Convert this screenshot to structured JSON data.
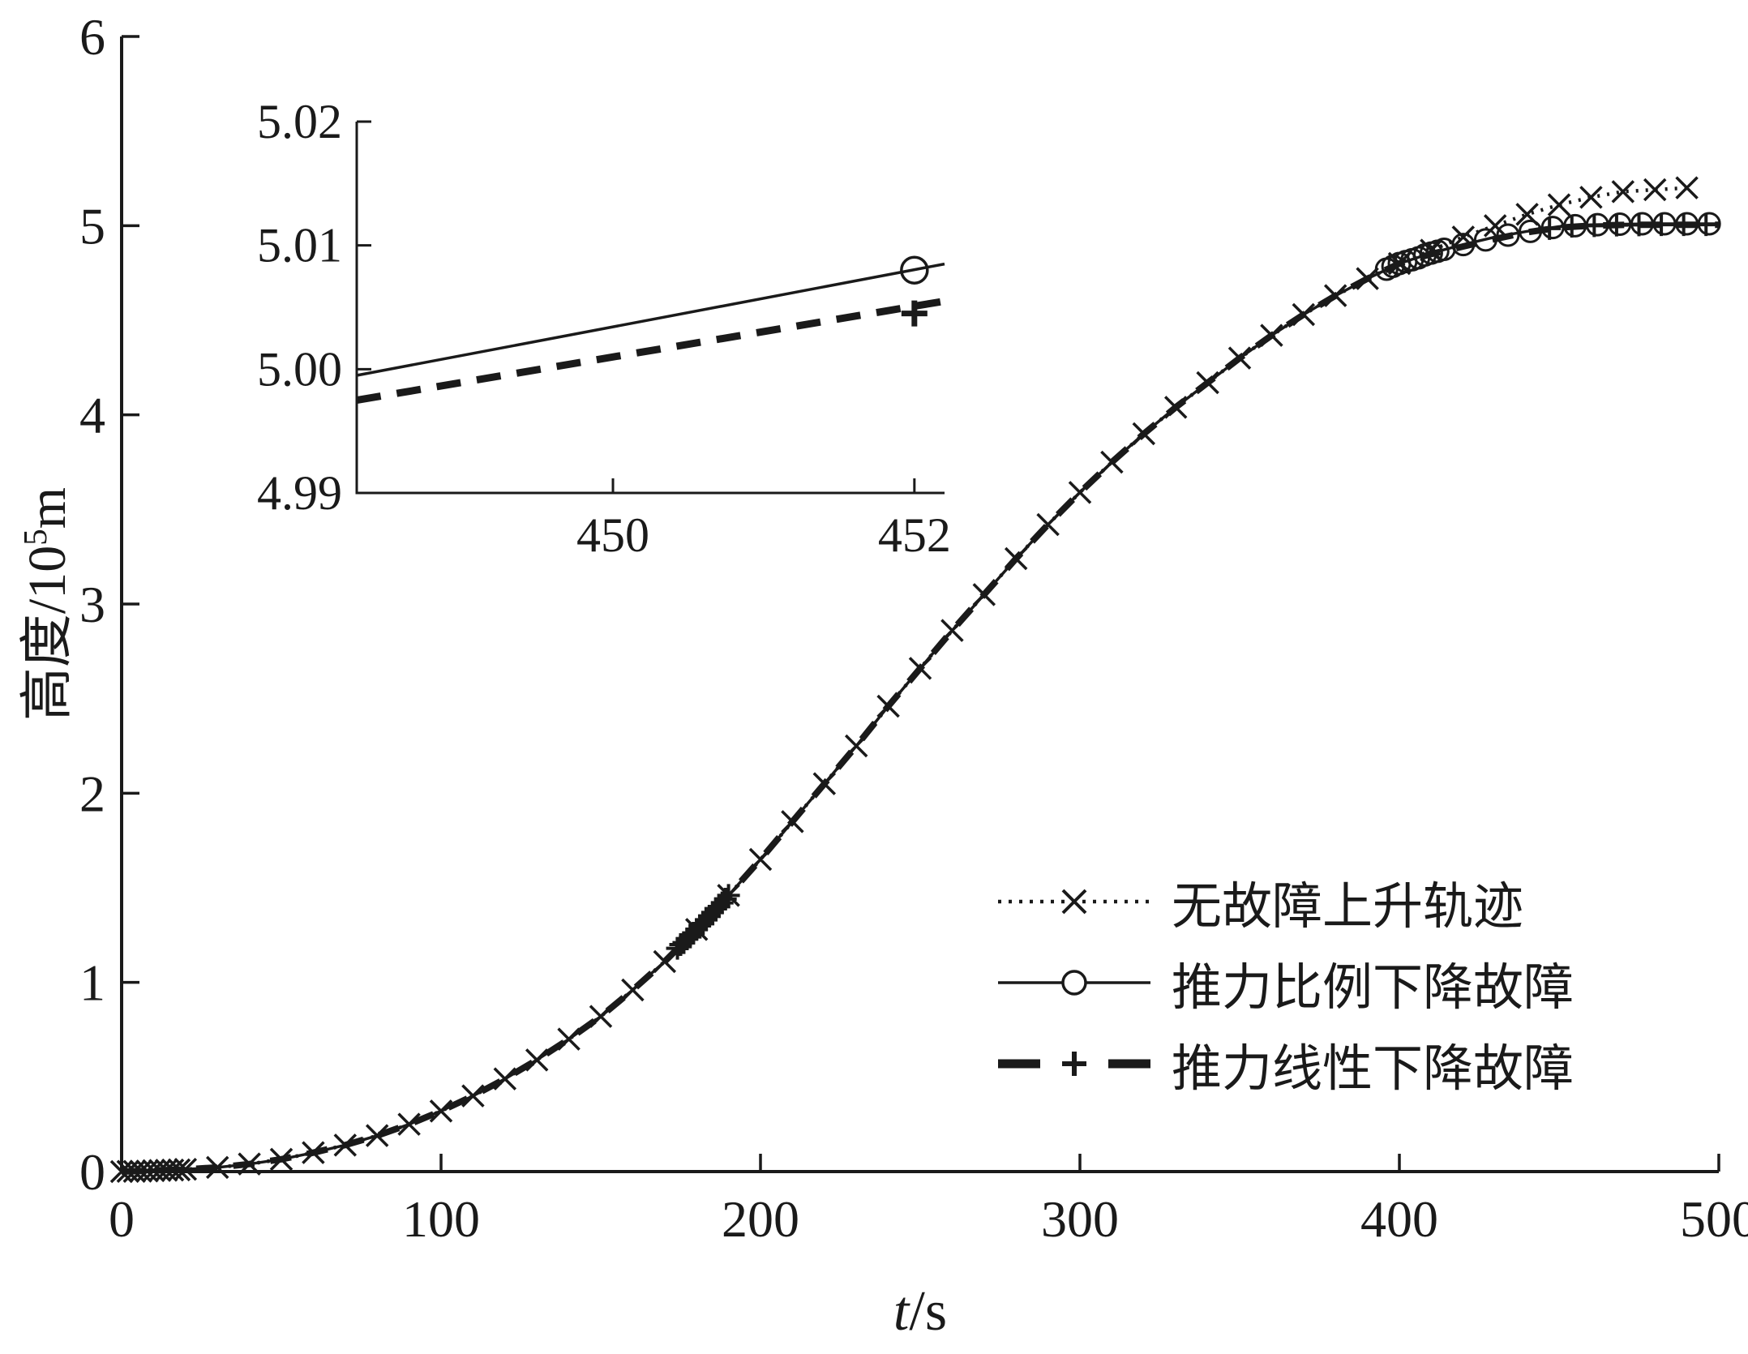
{
  "figure": {
    "bg": "#ffffff",
    "line_color": "#1a1a1a"
  },
  "main_axes": {
    "xlabel_var": "t",
    "xlabel_unit": "/s",
    "ylabel_prefix": "高度/10",
    "ylabel_sup": "5",
    "ylabel_suffix": "m"
  },
  "legend": {
    "items": [
      {
        "label": "无故障上升轨迹",
        "style": "dotted",
        "marker": "x"
      },
      {
        "label": "推力比例下降故障",
        "style": "solid",
        "marker": "circle"
      },
      {
        "label": "推力线性下降故障",
        "style": "dashed",
        "marker": "plus"
      }
    ]
  },
  "chart_data": {
    "type": "line",
    "xlabel": "t/s",
    "ylabel": "高度/10^5 m",
    "xlim": [
      0,
      500
    ],
    "ylim": [
      0,
      6
    ],
    "xticks": {
      "values": [
        0,
        100,
        200,
        300,
        400,
        500
      ],
      "labels": [
        "0",
        "100",
        "200",
        "300",
        "400",
        "500"
      ]
    },
    "yticks": {
      "values": [
        0,
        1,
        2,
        3,
        4,
        5,
        6
      ],
      "labels": [
        "0",
        "1",
        "2",
        "3",
        "4",
        "5",
        "6"
      ]
    },
    "grid": false,
    "legend_position": "lower-right-inside",
    "common_curve": [
      [
        0,
        0
      ],
      [
        10,
        0.005
      ],
      [
        20,
        0.012
      ],
      [
        30,
        0.022
      ],
      [
        40,
        0.04
      ],
      [
        50,
        0.065
      ],
      [
        60,
        0.1
      ],
      [
        70,
        0.14
      ],
      [
        80,
        0.19
      ],
      [
        90,
        0.25
      ],
      [
        100,
        0.32
      ],
      [
        110,
        0.4
      ],
      [
        120,
        0.49
      ],
      [
        130,
        0.59
      ],
      [
        140,
        0.7
      ],
      [
        150,
        0.82
      ],
      [
        160,
        0.96
      ],
      [
        170,
        1.11
      ],
      [
        180,
        1.28
      ],
      [
        190,
        1.46
      ],
      [
        200,
        1.65
      ],
      [
        210,
        1.85
      ],
      [
        220,
        2.05
      ],
      [
        230,
        2.25
      ],
      [
        240,
        2.46
      ],
      [
        250,
        2.66
      ],
      [
        260,
        2.86
      ],
      [
        270,
        3.05
      ],
      [
        280,
        3.24
      ],
      [
        290,
        3.42
      ],
      [
        300,
        3.59
      ],
      [
        310,
        3.75
      ],
      [
        320,
        3.9
      ],
      [
        330,
        4.04
      ],
      [
        340,
        4.17
      ],
      [
        350,
        4.3
      ],
      [
        360,
        4.42
      ],
      [
        370,
        4.53
      ],
      [
        380,
        4.63
      ],
      [
        390,
        4.72
      ],
      [
        400,
        4.8
      ]
    ],
    "series": [
      {
        "id": "fault-free",
        "name": "无故障上升轨迹",
        "style": "dotted",
        "marker": "x",
        "line_tail": [
          [
            410,
            4.87
          ],
          [
            420,
            4.94
          ],
          [
            430,
            5.0
          ],
          [
            440,
            5.06
          ],
          [
            450,
            5.11
          ],
          [
            460,
            5.15
          ],
          [
            470,
            5.18
          ],
          [
            480,
            5.19
          ],
          [
            490,
            5.2
          ]
        ],
        "markers": [
          [
            0,
            0
          ],
          [
            2,
            0.001
          ],
          [
            4,
            0.001
          ],
          [
            6,
            0.002
          ],
          [
            8,
            0.003
          ],
          [
            10,
            0.005
          ],
          [
            12,
            0.006
          ],
          [
            14,
            0.007
          ],
          [
            16,
            0.008
          ],
          [
            18,
            0.009
          ],
          [
            20,
            0.012
          ],
          [
            30,
            0.022
          ],
          [
            40,
            0.04
          ],
          [
            50,
            0.065
          ],
          [
            60,
            0.1
          ],
          [
            70,
            0.14
          ],
          [
            80,
            0.19
          ],
          [
            90,
            0.25
          ],
          [
            100,
            0.32
          ],
          [
            110,
            0.4
          ],
          [
            120,
            0.49
          ],
          [
            130,
            0.59
          ],
          [
            140,
            0.7
          ],
          [
            150,
            0.82
          ],
          [
            160,
            0.96
          ],
          [
            170,
            1.11
          ],
          [
            180,
            1.28
          ],
          [
            190,
            1.46
          ],
          [
            200,
            1.65
          ],
          [
            210,
            1.85
          ],
          [
            220,
            2.05
          ],
          [
            230,
            2.25
          ],
          [
            240,
            2.46
          ],
          [
            250,
            2.66
          ],
          [
            260,
            2.86
          ],
          [
            270,
            3.05
          ],
          [
            280,
            3.24
          ],
          [
            290,
            3.42
          ],
          [
            300,
            3.59
          ],
          [
            310,
            3.75
          ],
          [
            320,
            3.9
          ],
          [
            330,
            4.04
          ],
          [
            340,
            4.17
          ],
          [
            350,
            4.3
          ],
          [
            360,
            4.42
          ],
          [
            370,
            4.53
          ],
          [
            380,
            4.63
          ],
          [
            390,
            4.72
          ],
          [
            400,
            4.8
          ],
          [
            410,
            4.87
          ],
          [
            420,
            4.94
          ],
          [
            430,
            5.0
          ],
          [
            440,
            5.06
          ],
          [
            450,
            5.11
          ],
          [
            460,
            5.15
          ],
          [
            470,
            5.18
          ],
          [
            480,
            5.19
          ],
          [
            490,
            5.2
          ]
        ]
      },
      {
        "id": "thrust-proportional-decline",
        "name": "推力比例下降故障",
        "style": "solid",
        "marker": "circle",
        "line_tail": [
          [
            410,
            4.855
          ],
          [
            420,
            4.9
          ],
          [
            430,
            4.94
          ],
          [
            440,
            4.97
          ],
          [
            450,
            4.995
          ],
          [
            460,
            5.005
          ],
          [
            470,
            5.008
          ],
          [
            480,
            5.01
          ],
          [
            490,
            5.01
          ],
          [
            500,
            5.01
          ]
        ],
        "markers": [
          [
            396,
            4.77
          ],
          [
            398,
            4.785
          ],
          [
            400,
            4.8
          ],
          [
            402,
            4.81
          ],
          [
            404,
            4.82
          ],
          [
            406,
            4.83
          ],
          [
            408,
            4.845
          ],
          [
            410,
            4.855
          ],
          [
            412,
            4.865
          ],
          [
            414,
            4.875
          ],
          [
            420,
            4.9
          ],
          [
            427,
            4.925
          ],
          [
            434,
            4.95
          ],
          [
            441,
            4.97
          ],
          [
            448,
            4.99
          ],
          [
            455,
            5.0
          ],
          [
            462,
            5.005
          ],
          [
            469,
            5.008
          ],
          [
            476,
            5.01
          ],
          [
            483,
            5.01
          ],
          [
            490,
            5.01
          ],
          [
            497,
            5.01
          ]
        ]
      },
      {
        "id": "thrust-linear-decline",
        "name": "推力线性下降故障",
        "style": "dashed",
        "marker": "plus",
        "line_tail": [
          [
            410,
            4.85
          ],
          [
            420,
            4.89
          ],
          [
            430,
            4.93
          ],
          [
            440,
            4.965
          ],
          [
            450,
            4.99
          ],
          [
            460,
            5.0
          ],
          [
            470,
            5.004
          ],
          [
            480,
            5.005
          ],
          [
            490,
            5.005
          ],
          [
            500,
            5.005
          ]
        ],
        "markers": [
          [
            174,
            1.18
          ],
          [
            175,
            1.2
          ],
          [
            176,
            1.21
          ],
          [
            177,
            1.23
          ],
          [
            178,
            1.24
          ],
          [
            179,
            1.26
          ],
          [
            180,
            1.28
          ],
          [
            181,
            1.3
          ],
          [
            182,
            1.31
          ],
          [
            183,
            1.33
          ],
          [
            184,
            1.35
          ],
          [
            185,
            1.37
          ],
          [
            186,
            1.39
          ],
          [
            187,
            1.4
          ],
          [
            188,
            1.42
          ],
          [
            189,
            1.44
          ],
          [
            190,
            1.46
          ],
          [
            447,
            4.985
          ],
          [
            454,
            4.997
          ],
          [
            461,
            5.0
          ],
          [
            468,
            5.003
          ],
          [
            475,
            5.004
          ],
          [
            482,
            5.005
          ],
          [
            489,
            5.005
          ],
          [
            496,
            5.005
          ]
        ]
      }
    ],
    "inset": {
      "xlim": [
        448.3,
        452.2
      ],
      "ylim": [
        4.99,
        5.02
      ],
      "xticks": {
        "values": [
          450,
          452
        ],
        "labels": [
          "450",
          "452"
        ]
      },
      "yticks": {
        "values": [
          4.99,
          5.0,
          5.01,
          5.02
        ],
        "labels": [
          "4.99",
          "5.00",
          "5.01",
          "5.02"
        ]
      },
      "series": [
        {
          "id": "thrust-proportional-decline",
          "style": "solid",
          "marker": "circle",
          "line": [
            [
              448.3,
              4.9995
            ],
            [
              452.2,
              5.0085
            ]
          ],
          "markers": [
            [
              452,
              5.008
            ]
          ]
        },
        {
          "id": "thrust-linear-decline",
          "style": "dashed",
          "marker": "plus",
          "line": [
            [
              448.3,
              4.9975
            ],
            [
              452.2,
              5.0055
            ]
          ],
          "markers": [
            [
              452,
              5.0045
            ]
          ]
        }
      ]
    }
  }
}
